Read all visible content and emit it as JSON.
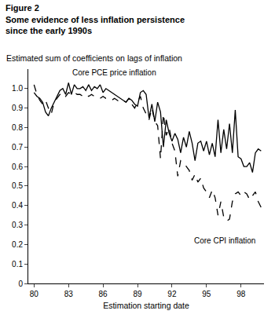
{
  "chart_data": {
    "type": "line",
    "title": "Figure 2",
    "subtitle": "Some evidence of less inflation persistence since the early 1990s",
    "y_label": "Estimated sum of coefficients on lags of inflation",
    "x_label": "Estimation starting date",
    "x": [
      1980,
      1980.25,
      1980.5,
      1980.75,
      1981,
      1981.25,
      1981.5,
      1981.75,
      1982,
      1982.25,
      1982.5,
      1982.75,
      1983,
      1983.25,
      1983.5,
      1983.75,
      1984,
      1984.25,
      1984.5,
      1984.75,
      1985,
      1985.25,
      1985.5,
      1985.75,
      1986,
      1986.25,
      1986.5,
      1986.75,
      1987,
      1987.25,
      1987.5,
      1987.75,
      1988,
      1988.25,
      1988.5,
      1988.75,
      1989,
      1989.25,
      1989.5,
      1989.75,
      1990,
      1990.25,
      1990.5,
      1990.75,
      1991,
      1991.25,
      1991.5,
      1991.75,
      1992,
      1992.25,
      1992.5,
      1992.75,
      1993,
      1993.25,
      1993.5,
      1993.75,
      1994,
      1994.25,
      1994.5,
      1994.75,
      1995,
      1995.25,
      1995.5,
      1995.75,
      1996,
      1996.25,
      1996.5,
      1996.75,
      1997,
      1997.25,
      1997.5,
      1997.75,
      1998,
      1998.25,
      1998.5,
      1998.75,
      1999,
      1999.25,
      1999.5,
      1999.75
    ],
    "series": [
      {
        "name": "Core PCE price inflation",
        "color": "#000000",
        "line_style": "solid",
        "label_at": [
          1987,
          1.08
        ],
        "values": [
          0.98,
          0.96,
          0.95,
          0.93,
          0.88,
          0.86,
          0.9,
          0.93,
          0.96,
          0.99,
          1.0,
          0.97,
          1.03,
          0.97,
          1.02,
          1.0,
          1.0,
          1.01,
          0.99,
          1.02,
          0.99,
          1.01,
          1.0,
          1.02,
          0.98,
          1.0,
          0.99,
          0.98,
          0.97,
          0.96,
          0.95,
          0.94,
          0.93,
          0.95,
          0.94,
          0.92,
          0.91,
          0.98,
          0.99,
          0.97,
          0.85,
          0.92,
          0.83,
          0.93,
          0.88,
          0.7,
          0.84,
          0.77,
          0.73,
          0.77,
          0.74,
          0.67,
          0.75,
          0.7,
          0.78,
          0.72,
          0.63,
          0.72,
          0.73,
          0.68,
          0.73,
          0.66,
          0.72,
          0.65,
          0.84,
          0.67,
          0.79,
          0.69,
          0.82,
          0.67,
          0.89,
          0.65,
          0.64,
          0.6,
          0.6,
          0.62,
          0.57,
          0.67,
          0.69,
          0.68
        ]
      },
      {
        "name": "Core CPI inflation",
        "color": "#000000",
        "line_style": "dashed",
        "label_at": [
          1996.6,
          0.22
        ],
        "values": [
          1.02,
          0.97,
          0.94,
          0.92,
          0.94,
          0.9,
          0.87,
          0.93,
          0.95,
          0.97,
          0.95,
          0.96,
          0.98,
          0.97,
          0.98,
          0.97,
          0.97,
          0.96,
          0.97,
          0.96,
          0.97,
          0.96,
          0.96,
          0.95,
          0.96,
          0.95,
          0.95,
          0.94,
          0.95,
          0.94,
          0.93,
          0.94,
          0.93,
          0.95,
          0.92,
          0.9,
          0.93,
          0.96,
          0.9,
          0.87,
          0.84,
          0.9,
          0.83,
          0.81,
          0.64,
          0.87,
          0.76,
          0.8,
          0.72,
          0.68,
          0.55,
          0.63,
          0.62,
          0.6,
          0.58,
          0.53,
          0.56,
          0.52,
          0.54,
          0.49,
          0.47,
          0.44,
          0.48,
          0.44,
          0.35,
          0.42,
          0.34,
          0.32,
          0.33,
          0.42,
          0.46,
          0.47,
          0.45,
          0.47,
          0.46,
          0.43,
          0.45,
          0.47,
          0.42,
          0.39
        ]
      }
    ],
    "xlim": [
      1979.5,
      2000
    ],
    "xticks": [
      {
        "value": 1980,
        "label": "80"
      },
      {
        "value": 1983,
        "label": "83"
      },
      {
        "value": 1986,
        "label": "86"
      },
      {
        "value": 1989,
        "label": "89"
      },
      {
        "value": 1992,
        "label": "92"
      },
      {
        "value": 1995,
        "label": "95"
      },
      {
        "value": 1998,
        "label": "98"
      }
    ],
    "ylim": [
      0,
      1.1
    ],
    "yticks": [
      0,
      0.1,
      0.2,
      0.3,
      0.4,
      0.5,
      0.6,
      0.7,
      0.8,
      0.9,
      {
        "value": 1,
        "label": "1.0"
      }
    ],
    "grid": false
  }
}
